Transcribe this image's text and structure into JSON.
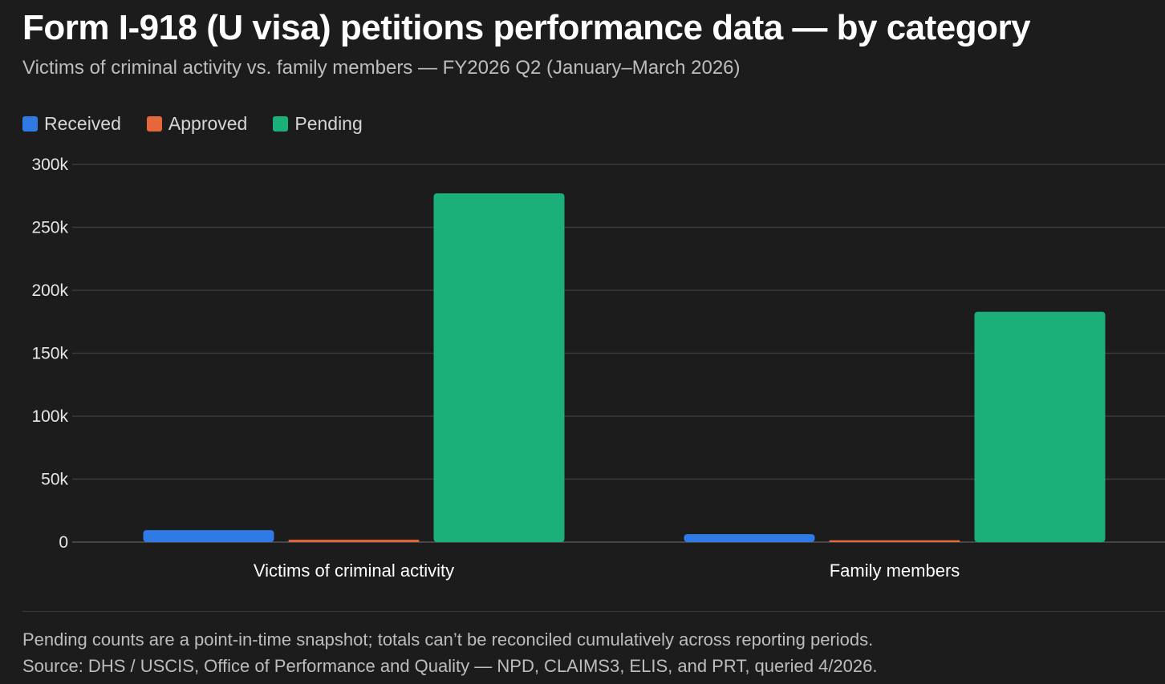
{
  "header": {
    "title": "Form I-918 (U visa) petitions performance data — by category",
    "subtitle": "Victims of criminal activity vs. family members — FY2026 Q2 (January–March 2026)"
  },
  "footer": {
    "note": "Pending counts are a point-in-time snapshot; totals can’t be reconciled cumulatively across reporting periods.",
    "source": "Source: DHS / USCIS, Office of Performance and Quality — NPD, CLAIMS3, ELIS, and PRT, queried 4/2026."
  },
  "chart_data": {
    "type": "bar",
    "title": "Form I-918 (U visa) petitions performance data — by category",
    "subtitle": "Victims of criminal activity vs. family members — FY2026 Q2 (January–March 2026)",
    "xlabel": "",
    "ylabel": "",
    "categories": [
      "Victims of criminal activity",
      "Family members"
    ],
    "series": [
      {
        "name": "Received",
        "color": "#2f7ae5",
        "values": [
          9500,
          6300
        ]
      },
      {
        "name": "Approved",
        "color": "#e8673a",
        "values": [
          1800,
          1400
        ]
      },
      {
        "name": "Pending",
        "color": "#1bb07a",
        "values": [
          277000,
          183000
        ]
      }
    ],
    "ylim": [
      0,
      300000
    ],
    "yticks": [
      0,
      50000,
      100000,
      150000,
      200000,
      250000,
      300000
    ],
    "ytick_labels": [
      "0",
      "50k",
      "100k",
      "150k",
      "200k",
      "250k",
      "300k"
    ],
    "grid": true,
    "legend_position": "top-left"
  }
}
